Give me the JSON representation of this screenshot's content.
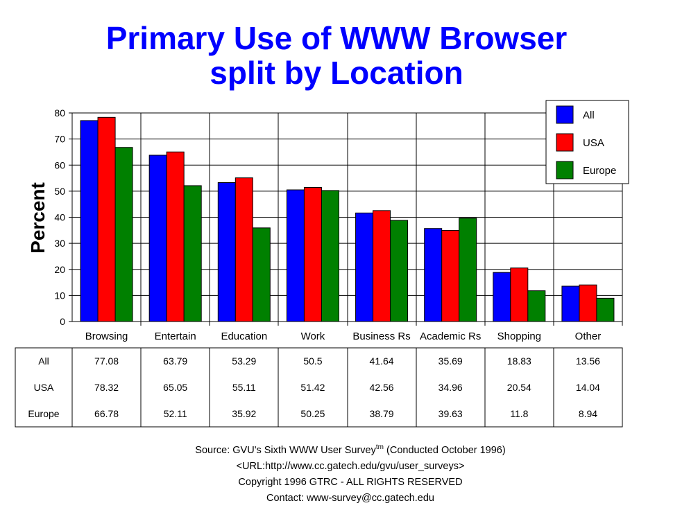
{
  "title_line1": "Primary Use of WWW Browser",
  "title_line2": "split by Location",
  "chart_data": {
    "type": "bar",
    "ylabel": "Percent",
    "ylim": [
      0,
      80
    ],
    "yticks": [
      0,
      10,
      20,
      30,
      40,
      50,
      60,
      70,
      80
    ],
    "grid": true,
    "legend_position": "top-right",
    "categories": [
      "Browsing",
      "Entertain",
      "Education",
      "Work",
      "Business Rs",
      "Academic Rs",
      "Shopping",
      "Other"
    ],
    "series": [
      {
        "name": "All",
        "color": "#0000ff",
        "values": [
          77.08,
          63.79,
          53.29,
          50.5,
          41.64,
          35.69,
          18.83,
          13.56
        ]
      },
      {
        "name": "USA",
        "color": "#ff0000",
        "values": [
          78.32,
          65.05,
          55.11,
          51.42,
          42.56,
          34.96,
          20.54,
          14.04
        ]
      },
      {
        "name": "Europe",
        "color": "#008000",
        "values": [
          66.78,
          52.11,
          35.92,
          50.25,
          38.79,
          39.63,
          11.8,
          8.94
        ]
      }
    ],
    "table": {
      "rows": [
        {
          "label": "All",
          "cells": [
            "77.08",
            "63.79",
            "53.29",
            "50.5",
            "41.64",
            "35.69",
            "18.83",
            "13.56"
          ]
        },
        {
          "label": "USA",
          "cells": [
            "78.32",
            "65.05",
            "55.11",
            "51.42",
            "42.56",
            "34.96",
            "20.54",
            "14.04"
          ]
        },
        {
          "label": "Europe",
          "cells": [
            "66.78",
            "52.11",
            "35.92",
            "50.25",
            "38.79",
            "39.63",
            "11.8",
            "8.94"
          ]
        }
      ]
    }
  },
  "footer": {
    "source_prefix": "Source: GVU's Sixth WWW User Survey",
    "source_tm": "tm",
    "source_suffix": "  (Conducted October 1996)",
    "url": "<URL:http://www.cc.gatech.edu/gvu/user_surveys>",
    "copyright": "Copyright 1996 GTRC -  ALL RIGHTS RESERVED",
    "contact": "Contact: www-survey@cc.gatech.edu"
  }
}
